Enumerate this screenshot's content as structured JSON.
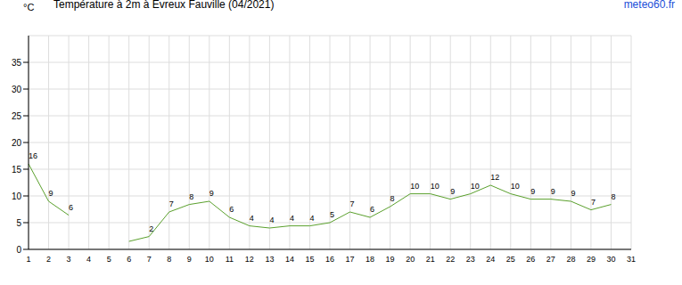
{
  "chart_data": {
    "type": "line",
    "title": "Température à 2m à Evreux Fauville (04/2021)",
    "source": "meteo60.fr",
    "y_label": "°C",
    "categories": [
      "1",
      "2",
      "3",
      "4",
      "5",
      "6",
      "7",
      "8",
      "9",
      "10",
      "11",
      "12",
      "13",
      "14",
      "15",
      "16",
      "17",
      "18",
      "19",
      "20",
      "21",
      "22",
      "23",
      "24",
      "25",
      "26",
      "27",
      "28",
      "29",
      "30",
      "31"
    ],
    "values": [
      16,
      9,
      6.4,
      null,
      null,
      1.5,
      2.4,
      7,
      8.4,
      9,
      6,
      4.4,
      4,
      4.4,
      4.4,
      5,
      7,
      6,
      8,
      10.4,
      10.4,
      9.4,
      10.4,
      12,
      10.4,
      9.4,
      9.4,
      9,
      7.4,
      8.4,
      null
    ],
    "value_labels": [
      "16",
      "9",
      "6",
      null,
      null,
      null,
      "2",
      "7",
      "8",
      "9",
      "6",
      "4",
      "4",
      "4",
      "4",
      "5",
      "7",
      "6",
      "8",
      "10",
      "10",
      "9",
      "10",
      "12",
      "10",
      "9",
      "9",
      "9",
      "7",
      "8",
      null
    ],
    "color": "#5aa02c",
    "ylim": [
      0,
      40
    ],
    "yticks": [
      0,
      5,
      10,
      15,
      20,
      25,
      30,
      35
    ],
    "grid": true,
    "data_labels": true
  }
}
